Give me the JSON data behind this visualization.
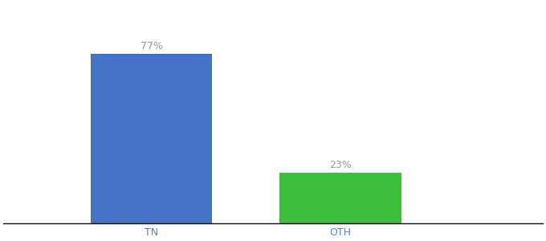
{
  "categories": [
    "TN",
    "OTH"
  ],
  "values": [
    77,
    23
  ],
  "bar_colors": [
    "#4472c4",
    "#3dbf3d"
  ],
  "label_texts": [
    "77%",
    "23%"
  ],
  "background_color": "#ffffff",
  "ylim": [
    0,
    100
  ],
  "bar_width": 0.18,
  "bar_positions": [
    0.27,
    0.55
  ],
  "xlim": [
    0.05,
    0.85
  ],
  "label_fontsize": 9,
  "tick_fontsize": 9,
  "label_color": "#999999",
  "tick_color": "#5588cc"
}
